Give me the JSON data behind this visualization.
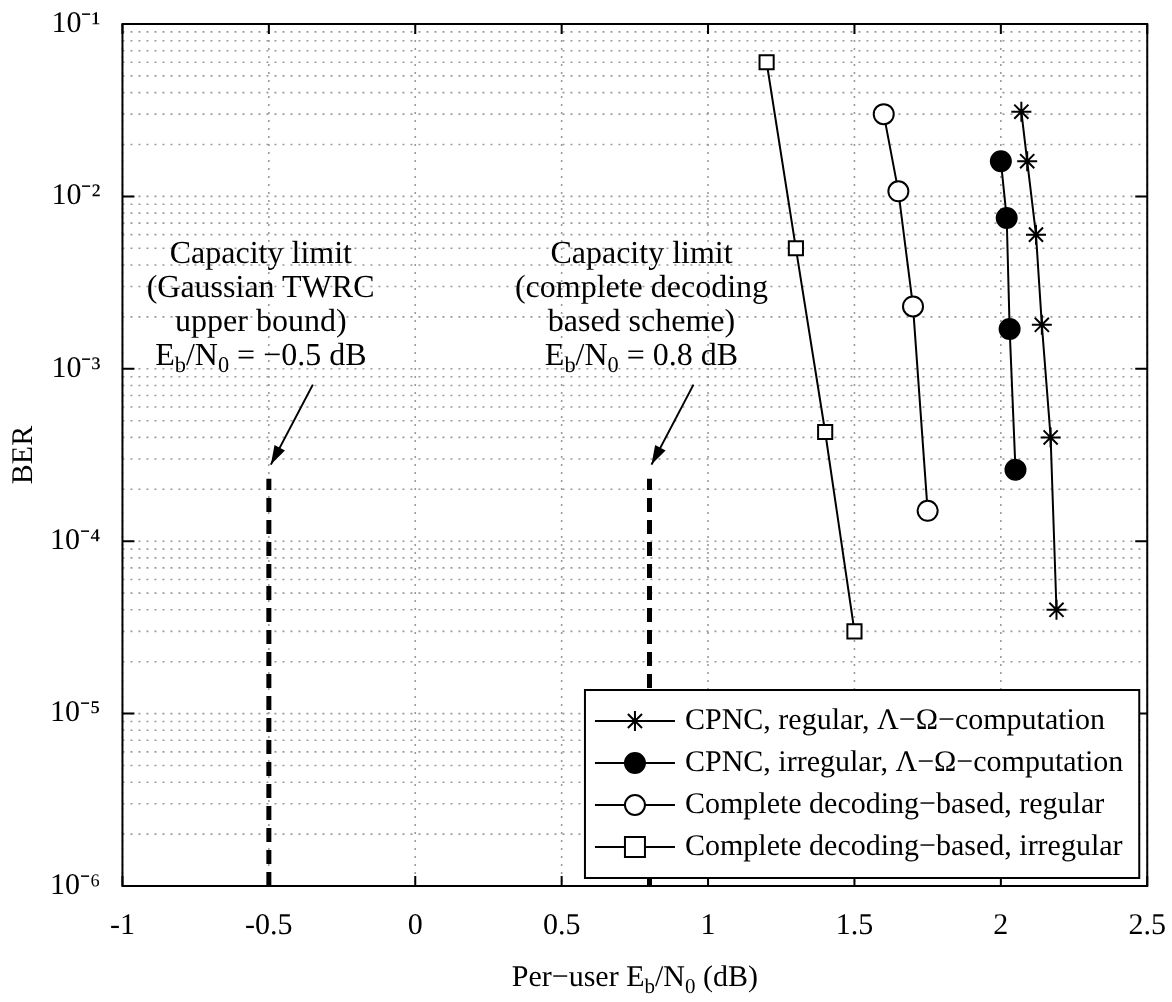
{
  "chart_data": {
    "type": "line",
    "xlabel": "Per−user E$_{b}$/N$_{0}$ (dB)",
    "ylabel": "BER",
    "log": "y",
    "grid": true,
    "legend": "bottom right",
    "xlim": [
      -1,
      2.5
    ],
    "xticks": [
      -1,
      -0.5,
      0,
      0.5,
      1,
      1.5,
      2,
      2.5
    ],
    "ylim": [
      1e-06,
      0.1
    ],
    "yticks": [
      {
        "value": 1e-06,
        "label": "10⁻⁶"
      },
      {
        "value": 1e-05,
        "label": "10⁻⁵"
      },
      {
        "value": 0.0001,
        "label": "10⁻⁴"
      },
      {
        "value": 0.001,
        "label": "10⁻³"
      },
      {
        "value": 0.01,
        "label": "10⁻²"
      },
      {
        "value": 0.1,
        "label": "10⁻¹"
      }
    ],
    "series": [
      {
        "name": "CPNC, regular, Λ−Ω−computation",
        "color": "#000000",
        "marker": "cross",
        "x": [
          2.07,
          2.09,
          2.12,
          2.14,
          2.17,
          2.19
        ],
        "values": [
          0.031,
          0.016,
          0.006,
          0.0018,
          0.0004,
          4e-05
        ]
      },
      {
        "name": "CPNC, irregular, Λ−Ω−computation",
        "color": "#000000",
        "marker": "circle",
        "x": [
          2.0,
          2.02,
          2.03,
          2.05
        ],
        "values": [
          0.016,
          0.0075,
          0.0017,
          0.00026
        ]
      },
      {
        "name": "Complete decoding−based, regular",
        "color": "#000000",
        "marker": "circle",
        "x": [
          1.6,
          1.65,
          1.7,
          1.75
        ],
        "values": [
          0.03,
          0.0107,
          0.0023,
          0.00015
        ]
      },
      {
        "name": "Complete decoding−based, irregular",
        "color": "#000000",
        "marker": "square",
        "x": [
          1.2,
          1.3,
          1.4,
          1.5
        ],
        "values": [
          0.06,
          0.005,
          0.00043,
          3e-05
        ]
      },
      {
        "color": "#000000",
        "marker": "none",
        "line_style": "dashed",
        "x": [
          -0.5,
          -0.5
        ],
        "values": [
          1e-06,
          0.00023
        ]
      },
      {
        "color": "#000000",
        "marker": "none",
        "line_style": "dashed",
        "x": [
          0.8,
          0.8
        ],
        "values": [
          1e-06,
          0.00023
        ]
      }
    ],
    "annotations": [
      {
        "text": "Capacity limit\n(Gaussian TWRC\nupper bound)\nE$_{b}$/N$_{0}$ = −0.5 dB",
        "x": -0.5,
        "y": 0.00025
      },
      {
        "text": "Capacity limit\n(complete decoding\nbased scheme)\nE$_{b}$/N$_{0}$ = 0.8 dB",
        "x": 0.8,
        "y": 0.00025
      }
    ]
  }
}
